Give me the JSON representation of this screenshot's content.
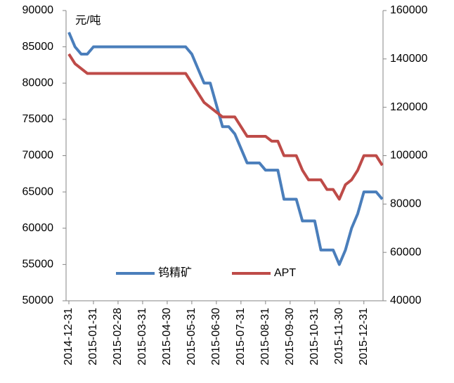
{
  "chart_data": {
    "type": "line",
    "annotation": "元/吨",
    "categories": [
      "2014-12-31",
      null,
      null,
      null,
      "2015-01-31",
      null,
      null,
      null,
      "2015-02-28",
      null,
      null,
      null,
      "2015-03-31",
      null,
      null,
      null,
      "2015-04-30",
      null,
      null,
      null,
      "2015-05-31",
      null,
      null,
      null,
      "2015-06-30",
      null,
      null,
      null,
      "2015-07-31",
      null,
      null,
      null,
      "2015-08-31",
      null,
      null,
      null,
      "2015-09-30",
      null,
      null,
      null,
      "2015-10-31",
      null,
      null,
      null,
      "2015-11-30",
      null,
      null,
      null,
      "2015-12-31",
      null,
      null,
      null
    ],
    "series": [
      {
        "name": "钨精矿",
        "color": "#4a7ebb",
        "axis": "y",
        "values": [
          87000,
          85000,
          84000,
          84000,
          85000,
          85000,
          85000,
          85000,
          85000,
          85000,
          85000,
          85000,
          85000,
          85000,
          85000,
          85000,
          85000,
          85000,
          85000,
          85000,
          84000,
          82000,
          80000,
          80000,
          77000,
          74000,
          74000,
          73000,
          71000,
          69000,
          69000,
          69000,
          68000,
          68000,
          68000,
          64000,
          64000,
          64000,
          61000,
          61000,
          61000,
          57000,
          57000,
          57000,
          55000,
          57000,
          60000,
          62000,
          65000,
          65000,
          65000,
          64000
        ]
      },
      {
        "name": "APT",
        "color": "#be4b48",
        "axis": "y2",
        "values": [
          142000,
          138000,
          136000,
          134000,
          134000,
          134000,
          134000,
          134000,
          134000,
          134000,
          134000,
          134000,
          134000,
          134000,
          134000,
          134000,
          134000,
          134000,
          134000,
          134000,
          130000,
          126000,
          122000,
          120000,
          118000,
          116000,
          116000,
          116000,
          112000,
          108000,
          108000,
          108000,
          108000,
          106000,
          106000,
          100000,
          100000,
          100000,
          94000,
          90000,
          90000,
          90000,
          86000,
          86000,
          82000,
          88000,
          90000,
          94000,
          100000,
          100000,
          100000,
          96000
        ]
      }
    ],
    "ylim": [
      50000,
      90000
    ],
    "yticks": [
      50000,
      55000,
      60000,
      65000,
      70000,
      75000,
      80000,
      85000,
      90000
    ],
    "y2lim": [
      40000,
      160000
    ],
    "y2ticks": [
      40000,
      60000,
      80000,
      100000,
      120000,
      140000,
      160000
    ],
    "legend": "bottom"
  }
}
